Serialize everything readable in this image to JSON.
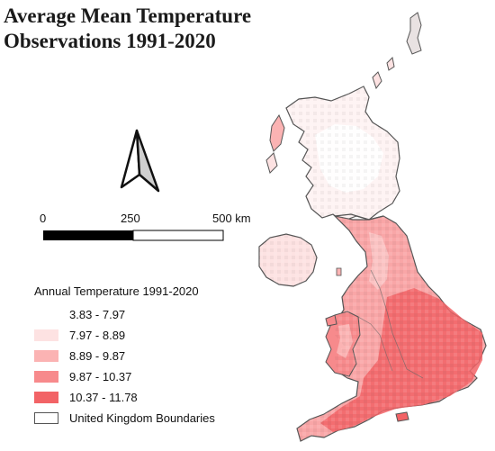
{
  "title": {
    "line1": "Average Mean Temperature",
    "line2": "Observations 1991-2020"
  },
  "scale_bar": {
    "ticks": [
      "0",
      "250",
      "500 km"
    ]
  },
  "legend": {
    "title": "Annual Temperature 1991-2020",
    "classes": [
      {
        "label": "3.83 - 7.97",
        "color": "#ffffff"
      },
      {
        "label": "7.97 - 8.89",
        "color": "#fde2e2"
      },
      {
        "label": "8.89 - 9.87",
        "color": "#fbb3b3"
      },
      {
        "label": "9.87 - 10.37",
        "color": "#f78a8c"
      },
      {
        "label": "10.37 - 11.78",
        "color": "#f26366"
      }
    ],
    "boundary_label": "United Kingdom Boundaries"
  },
  "map": {
    "north_arrow": "north-arrow-icon",
    "boundary_color": "#555555"
  }
}
